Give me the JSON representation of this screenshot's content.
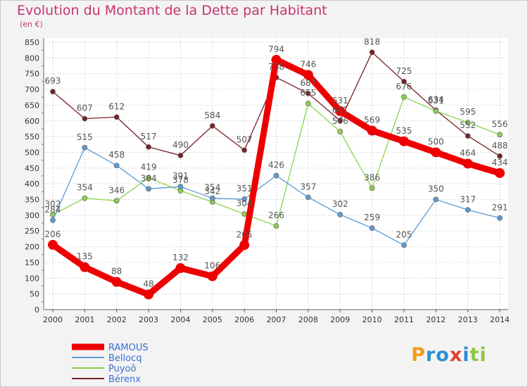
{
  "header": {
    "title": "Evolution du Montant de la Dette par Habitant",
    "unit": "(en €)"
  },
  "logo": {
    "letters": [
      "P",
      "r",
      "o",
      "x",
      "i",
      "t",
      "i"
    ],
    "colors": [
      "#f29b1b",
      "#2e8fd3",
      "#2e8fd3",
      "#e33e2b",
      "#2e8fd3",
      "#8cc63f",
      "#8cc63f"
    ]
  },
  "chart_data": {
    "type": "line",
    "title": "Evolution du Montant de la Dette par Habitant",
    "ylabel": "(en €)",
    "xlabel": "",
    "categories": [
      "2000",
      "2001",
      "2002",
      "2003",
      "2004",
      "2005",
      "2006",
      "2007",
      "2008",
      "2009",
      "2010",
      "2011",
      "2012",
      "2013",
      "2014"
    ],
    "ylim": [
      0,
      850
    ],
    "yticks": [
      0,
      50,
      100,
      150,
      200,
      250,
      300,
      350,
      400,
      450,
      500,
      550,
      600,
      650,
      700,
      750,
      800,
      850
    ],
    "grid": true,
    "legend_position": "bottom-left",
    "series": [
      {
        "name": "RAMOUS",
        "color": "#ee0000",
        "values": [
          206,
          135,
          88,
          48,
          132,
          106,
          205,
          794,
          746,
          631,
          569,
          535,
          500,
          464,
          434
        ]
      },
      {
        "name": "Bellocq",
        "color": "#5b9bd5",
        "values": [
          284,
          515,
          458,
          384,
          391,
          354,
          351,
          426,
          357,
          302,
          259,
          205,
          350,
          317,
          291
        ]
      },
      {
        "name": "Puyoô",
        "color": "#8ad44a",
        "values": [
          302,
          354,
          346,
          419,
          378,
          342,
          304,
          266,
          655,
          566,
          386,
          676,
          631,
          595,
          556
        ]
      },
      {
        "name": "Bérenx",
        "color": "#7a1f24",
        "values": [
          693,
          607,
          612,
          517,
          490,
          584,
          507,
          738,
          687,
          601,
          818,
          725,
          634,
          552,
          488
        ]
      }
    ]
  }
}
